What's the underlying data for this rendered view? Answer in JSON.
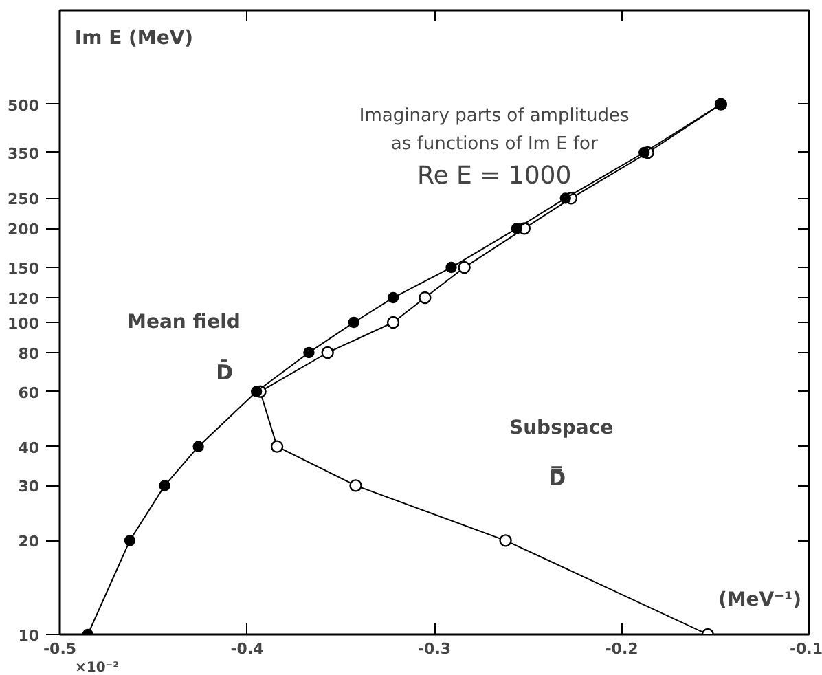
{
  "chart_data": {
    "type": "line",
    "title": "Imaginary parts of amplitudes\nas functions of Im E for",
    "subtitle": "Re E = 1000",
    "xlabel": "(MeV⁻¹)",
    "ylabel": "Im E (MeV)",
    "log": "y",
    "xlim": [
      -0.5,
      -0.1
    ],
    "ylim": [
      10,
      1000
    ],
    "annotations": [
      "×10⁻²"
    ],
    "xticks": [
      -0.5,
      {
        "value": -0.4,
        "label": "-0.4"
      },
      {
        "value": -0.3,
        "label": "-0.3"
      },
      {
        "value": -0.2,
        "label": "-0.2"
      },
      {
        "value": -0.1,
        "label": "-0.1"
      }
    ],
    "yticks": [
      10,
      20,
      30,
      40,
      60,
      80,
      100,
      120,
      150,
      200,
      250,
      350,
      500
    ],
    "grid": false,
    "marker": "circle",
    "line_style": "solid",
    "series": [
      {
        "name": "Subspace\nD̿",
        "color": "#000000",
        "x": [
          -0.147,
          -0.186,
          -0.227,
          -0.252,
          -0.284,
          -0.305,
          -0.322,
          -0.357,
          -0.393,
          -0.384,
          -0.342,
          -0.262,
          -0.154
        ],
        "values": [
          500,
          350,
          250,
          200,
          150,
          120,
          100,
          80,
          60,
          40,
          30,
          20,
          10
        ]
      },
      {
        "name": "Mean field\nD̄",
        "color": "#000000",
        "x": [
          -0.485,
          -0.4626,
          -0.444,
          -0.426,
          -0.395,
          -0.367,
          -0.343,
          -0.322,
          -0.291,
          -0.256,
          -0.23,
          -0.188,
          -0.147
        ],
        "values": [
          10,
          20,
          30,
          40,
          60,
          80,
          100,
          120,
          150,
          200,
          250,
          350,
          500
        ]
      }
    ]
  }
}
